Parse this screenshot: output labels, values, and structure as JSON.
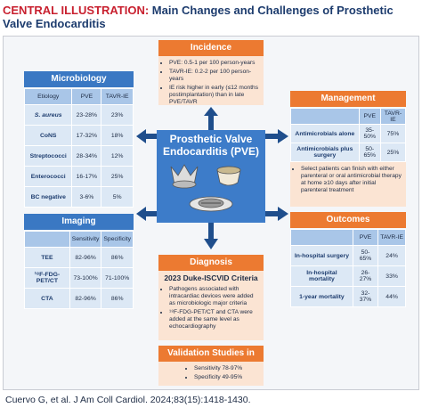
{
  "header": {
    "label": "CENTRAL ILLUSTRATION:",
    "title": "Main Changes and Challenges of Prosthetic Valve Endocarditis"
  },
  "center": {
    "title": "Prosthetic Valve Endocarditis (PVE)"
  },
  "incidence": {
    "title": "Incidence",
    "bullets": [
      "PVE: 0.5-1 per 100 person-years",
      "TAVR-IE: 0.2-2 per 100 person-years",
      "IE risk higher in early (≤12 months postimplantation) than in late PVE/TAVR"
    ]
  },
  "microbiology": {
    "title": "Microbiology",
    "columns": [
      "Etiology",
      "PVE",
      "TAVR-IE"
    ],
    "rows": [
      [
        "S. aureus",
        "23-28%",
        "23%"
      ],
      [
        "CoNS",
        "17-32%",
        "18%"
      ],
      [
        "Streptococci",
        "28-34%",
        "12%"
      ],
      [
        "Enterococci",
        "16-17%",
        "25%"
      ],
      [
        "BC negative",
        "3-6%",
        "5%"
      ]
    ]
  },
  "imaging": {
    "title": "Imaging",
    "columns": [
      "Sensitivity",
      "Specificity"
    ],
    "rows": [
      [
        "TEE",
        "82-96%",
        "86%"
      ],
      [
        "¹⁸F-FDG-PET/CT",
        "73-100%",
        "71-100%"
      ],
      [
        "CTA",
        "82-96%",
        "86%"
      ]
    ]
  },
  "management": {
    "title": "Management",
    "columns": [
      "PVE",
      "TAVR-IE"
    ],
    "rows": [
      [
        "Antimicrobials alone",
        "35-50%",
        "75%"
      ],
      [
        "Antimicrobials plus surgery",
        "50-65%",
        "25%"
      ]
    ],
    "bullets": [
      "Select patients can finish with either parenteral or oral antimicrobial therapy at home ≥10 days after initial parenteral treatment"
    ]
  },
  "outcomes": {
    "title": "Outcomes",
    "columns": [
      "PVE",
      "TAVR-IE"
    ],
    "rows": [
      [
        "In-hospital surgery",
        "50-65%",
        "24%"
      ],
      [
        "In-hospital mortality",
        "26-27%",
        "33%"
      ],
      [
        "1-year mortality",
        "32-37%",
        "44%"
      ]
    ]
  },
  "diagnosis": {
    "title": "Diagnosis",
    "subtitle": "2023 Duke-ISCVID Criteria",
    "bullets": [
      "Pathogens associated with intracardiac devices were added as microbiologic major criteria",
      "¹⁸F-FDG-PET/CT and CTA were added at the same level as echocardiography"
    ]
  },
  "validation": {
    "title": "Validation Studies in PVE",
    "bullets": [
      "Sensitivity 78-97%",
      "Specificity 49-95%"
    ]
  },
  "footer": {
    "citation": "Cuervo G, et al. J Am Coll Cardiol. 2024;83(15):1418-1430."
  }
}
